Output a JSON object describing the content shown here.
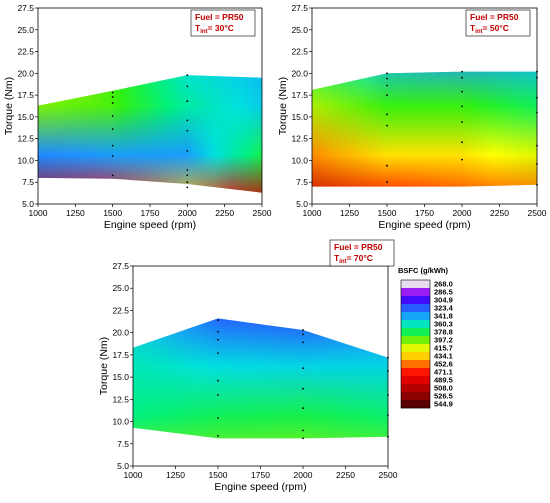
{
  "colors": {
    "scale": [
      "#e8dcf0",
      "#a020f0",
      "#4400ff",
      "#2a50ff",
      "#1e90ff",
      "#00e0e0",
      "#00f080",
      "#30f010",
      "#c0f000",
      "#ffff00",
      "#ffb000",
      "#ff5000",
      "#ff0000",
      "#d80000",
      "#b00000",
      "#8a0000",
      "#5a0000"
    ],
    "point": "#000000",
    "fuel_text": "#c00000"
  },
  "colorbar": {
    "title": "BSFC (g/kWh)",
    "ticks": [
      "268.0",
      "286.5",
      "304.9",
      "323.4",
      "341.8",
      "360.3",
      "378.8",
      "397.2",
      "415.7",
      "434.1",
      "452.6",
      "471.1",
      "489.5",
      "508.0",
      "526.5",
      "544.9"
    ]
  },
  "chart_data": [
    {
      "type": "heatmap",
      "title": "",
      "annotation": {
        "fuel": "Fuel = PR50",
        "temp_prefix": "T",
        "temp_sub": "int",
        "temp_value": "= 30°C"
      },
      "xlabel": "Engine speed (rpm)",
      "ylabel": "Torque (Nm)",
      "xlim": [
        1000,
        2500
      ],
      "ylim": [
        5.0,
        27.5
      ],
      "xticks": [
        "1000",
        "1250",
        "1500",
        "1750",
        "2000",
        "2250",
        "2500"
      ],
      "yticks": [
        "5.0",
        "7.5",
        "10.0",
        "12.5",
        "15.0",
        "17.5",
        "20.0",
        "22.5",
        "25.0",
        "27.5"
      ],
      "region": {
        "upper": [
          [
            1000,
            16.3
          ],
          [
            1500,
            18.0
          ],
          [
            2000,
            19.8
          ],
          [
            2500,
            19.5
          ]
        ],
        "lower": [
          [
            1000,
            8.0
          ],
          [
            1500,
            7.9
          ],
          [
            2000,
            7.3
          ],
          [
            2500,
            6.3
          ]
        ]
      },
      "grid": {
        "x": [
          1000,
          1500,
          2000,
          2500
        ],
        "bsfc": [
          [
            505,
            335,
            398,
            430,
            395
          ],
          [
            472,
            340,
            392,
            390,
            360
          ],
          [
            440,
            340,
            366,
            355,
            340
          ],
          [
            500,
            380,
            350,
            345,
            341
          ]
        ]
      },
      "points": [
        [
          1500,
          8.3
        ],
        [
          1500,
          10.5
        ],
        [
          1500,
          11.7
        ],
        [
          1500,
          13.6
        ],
        [
          1500,
          15.1
        ],
        [
          1500,
          16.6
        ],
        [
          1500,
          17.3
        ],
        [
          1500,
          17.8
        ],
        [
          2000,
          6.9
        ],
        [
          2000,
          7.5
        ],
        [
          2000,
          8.3
        ],
        [
          2000,
          8.9
        ],
        [
          2000,
          11.1
        ],
        [
          2000,
          13.4
        ],
        [
          2000,
          14.6
        ],
        [
          2000,
          16.8
        ],
        [
          2000,
          18.5
        ],
        [
          2000,
          19.8
        ]
      ]
    },
    {
      "type": "heatmap",
      "title": "",
      "annotation": {
        "fuel": "Fuel = PR50",
        "temp_prefix": "T",
        "temp_sub": "int",
        "temp_value": "= 50°C"
      },
      "xlabel": "Engine speed (rpm)",
      "ylabel": "Torque (Nm)",
      "xlim": [
        1000,
        2500
      ],
      "ylim": [
        5.0,
        27.5
      ],
      "xticks": [
        "1000",
        "1250",
        "1500",
        "1750",
        "2000",
        "2250",
        "2500"
      ],
      "yticks": [
        "5.0",
        "7.5",
        "10.0",
        "12.5",
        "15.0",
        "17.5",
        "20.0",
        "22.5",
        "25.0",
        "27.5"
      ],
      "region": {
        "upper": [
          [
            1000,
            18.1
          ],
          [
            1500,
            20.0
          ],
          [
            2000,
            20.2
          ],
          [
            2500,
            20.2
          ]
        ],
        "lower": [
          [
            1000,
            7.0
          ],
          [
            1500,
            7.0
          ],
          [
            2000,
            7.0
          ],
          [
            2500,
            7.2
          ]
        ]
      },
      "grid": {
        "x": [
          1000,
          1500,
          2000,
          2500
        ],
        "bsfc": [
          [
            505,
            448,
            404,
            378,
            370
          ],
          [
            478,
            430,
            390,
            345,
            320
          ],
          [
            465,
            430,
            390,
            340,
            325
          ],
          [
            458,
            415,
            378,
            345,
            325
          ]
        ]
      },
      "points": [
        [
          1500,
          7.5
        ],
        [
          1500,
          9.4
        ],
        [
          1500,
          14.0
        ],
        [
          1500,
          15.3
        ],
        [
          1500,
          17.5
        ],
        [
          1500,
          18.6
        ],
        [
          1500,
          19.4
        ],
        [
          1500,
          20.0
        ],
        [
          2000,
          10.1
        ],
        [
          2000,
          12.1
        ],
        [
          2000,
          14.4
        ],
        [
          2000,
          16.2
        ],
        [
          2000,
          17.9
        ],
        [
          2000,
          19.5
        ],
        [
          2000,
          20.2
        ],
        [
          2500,
          7.2
        ],
        [
          2500,
          9.6
        ],
        [
          2500,
          11.7
        ],
        [
          2500,
          15.5
        ],
        [
          2500,
          17.2
        ],
        [
          2500,
          19.5
        ],
        [
          2500,
          20.2
        ]
      ]
    },
    {
      "type": "heatmap",
      "title": "",
      "annotation": {
        "fuel": "Fuel = PR50",
        "temp_prefix": "T",
        "temp_sub": "int",
        "temp_value": "= 70°C"
      },
      "xlabel": "Engine speed (rpm)",
      "ylabel": "Torque (Nm)",
      "xlim": [
        1000,
        2500
      ],
      "ylim": [
        5.0,
        27.5
      ],
      "xticks": [
        "1000",
        "1250",
        "1500",
        "1750",
        "2000",
        "2250",
        "2500"
      ],
      "yticks": [
        "5.0",
        "7.5",
        "10.0",
        "12.5",
        "15.0",
        "17.5",
        "20.0",
        "22.5",
        "25.0",
        "27.5"
      ],
      "region": {
        "upper": [
          [
            1000,
            18.3
          ],
          [
            1500,
            21.6
          ],
          [
            2000,
            20.3
          ],
          [
            2500,
            17.2
          ]
        ],
        "lower": [
          [
            1000,
            9.3
          ],
          [
            1500,
            8.1
          ],
          [
            2000,
            8.1
          ],
          [
            2500,
            8.3
          ]
        ]
      },
      "grid": {
        "x": [
          1000,
          1500,
          2000,
          2500
        ],
        "bsfc": [
          [
            400,
            372,
            362,
            350,
            335
          ],
          [
            400,
            378,
            354,
            325,
            300
          ],
          [
            402,
            380,
            352,
            320,
            300
          ],
          [
            398,
            375,
            352,
            332,
            320
          ]
        ]
      },
      "points": [
        [
          1500,
          8.4
        ],
        [
          1500,
          10.4
        ],
        [
          1500,
          13.0
        ],
        [
          1500,
          14.6
        ],
        [
          1500,
          17.7
        ],
        [
          1500,
          19.2
        ],
        [
          1500,
          20.1
        ],
        [
          1500,
          21.4
        ],
        [
          2000,
          8.1
        ],
        [
          2000,
          9.0
        ],
        [
          2000,
          11.5
        ],
        [
          2000,
          13.7
        ],
        [
          2000,
          16.0
        ],
        [
          2000,
          18.9
        ],
        [
          2000,
          19.8
        ],
        [
          2000,
          20.3
        ],
        [
          2500,
          8.3
        ],
        [
          2500,
          10.7
        ],
        [
          2500,
          13.0
        ],
        [
          2500,
          15.7
        ],
        [
          2500,
          17.2
        ]
      ]
    }
  ]
}
